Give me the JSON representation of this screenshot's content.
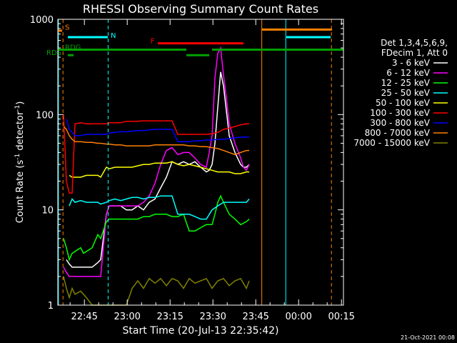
{
  "chart_data": {
    "type": "line",
    "title": "RHESSI Observing Summary Count Rates",
    "xlabel": "Start Time (20-Jul-13 22:35:42)",
    "ylabel_main": "Count Rate (s",
    "ylabel_sup": "-1",
    "ylabel_tail": " detector",
    "ylabel_sup2": "-1",
    "ylabel_close": ")",
    "x_unit": "minutes from 22:35:42",
    "xlim": [
      0,
      100
    ],
    "ylim": [
      1,
      1000
    ],
    "yscale": "log",
    "x_ticks": [
      {
        "x": 9.3,
        "label": "22:45"
      },
      {
        "x": 24.3,
        "label": "23:00"
      },
      {
        "x": 39.3,
        "label": "23:15"
      },
      {
        "x": 54.3,
        "label": "23:30"
      },
      {
        "x": 69.3,
        "label": "23:45"
      },
      {
        "x": 84.3,
        "label": "00:00"
      },
      {
        "x": 99.3,
        "label": "00:15"
      }
    ],
    "y_ticks": [
      {
        "y": 1,
        "label": "1"
      },
      {
        "y": 10,
        "label": "10"
      },
      {
        "y": 100,
        "label": "100"
      },
      {
        "y": 1000,
        "label": "1000"
      }
    ],
    "legend_header": [
      "Det 1,3,4,5,6,9,",
      "FDecim 1, Att 0"
    ],
    "legend_position": "right",
    "series": [
      {
        "name": "3 - 6 keV",
        "color": "#ffffff",
        "x": [
          3,
          4,
          5,
          8,
          9,
          12,
          14,
          15,
          17,
          18,
          20,
          22,
          24,
          26,
          28,
          30,
          32,
          34,
          36,
          38,
          40,
          42,
          44,
          46,
          48,
          50,
          52,
          53,
          54,
          55,
          56,
          57,
          58,
          59,
          60,
          62,
          64,
          65,
          66,
          67
        ],
        "y": [
          3,
          2.7,
          2.5,
          2.5,
          2.5,
          2.5,
          2.8,
          3,
          9,
          11,
          11,
          11,
          10,
          10,
          11,
          10,
          12,
          13,
          17,
          22,
          32,
          30,
          32,
          30,
          32,
          28,
          25,
          26,
          30,
          50,
          120,
          280,
          200,
          110,
          60,
          40,
          30,
          28,
          28,
          30
        ]
      },
      {
        "name": "6 - 12 keV",
        "color": "#ff00ff",
        "x": [
          2,
          3,
          4,
          5,
          8,
          9,
          12,
          14,
          15,
          17,
          18,
          20,
          22,
          24,
          26,
          28,
          30,
          32,
          34,
          36,
          38,
          40,
          42,
          44,
          46,
          48,
          50,
          52,
          53,
          54,
          55,
          56,
          57,
          58,
          59,
          60,
          62,
          64,
          65,
          66,
          67
        ],
        "y": [
          2.5,
          2.2,
          2,
          2,
          2,
          2,
          2,
          2,
          2,
          9,
          11,
          11,
          11,
          11,
          11,
          11,
          12,
          14,
          19,
          30,
          42,
          45,
          38,
          40,
          40,
          35,
          30,
          28,
          40,
          60,
          240,
          440,
          500,
          260,
          150,
          80,
          50,
          35,
          28,
          26,
          30
        ]
      },
      {
        "name": "12 - 25 keV",
        "color": "#00ff00",
        "x": [
          2,
          3,
          4,
          5,
          8,
          9,
          12,
          14,
          15,
          17,
          18,
          20,
          22,
          24,
          26,
          28,
          30,
          32,
          34,
          36,
          38,
          40,
          42,
          44,
          46,
          48,
          50,
          52,
          54,
          55,
          56,
          57,
          58,
          60,
          62,
          64,
          66,
          67
        ],
        "y": [
          5,
          4,
          3,
          3.5,
          4,
          3.5,
          4,
          5.5,
          5,
          7.5,
          8,
          8,
          8,
          8,
          8,
          8,
          8.5,
          8.5,
          9,
          9,
          9,
          8.5,
          8.5,
          9,
          6,
          6,
          6.5,
          7,
          7,
          9,
          12,
          14,
          12,
          9,
          8,
          7,
          7.5,
          8
        ]
      },
      {
        "name": "25 - 50 keV",
        "color": "#00ffff",
        "x": [
          4,
          5,
          6,
          8,
          10,
          12,
          14,
          15,
          17,
          18,
          20,
          22,
          24,
          26,
          28,
          30,
          32,
          34,
          36,
          38,
          40,
          42,
          44,
          46,
          48,
          50,
          52,
          54,
          56,
          58,
          60,
          62,
          64,
          66,
          67
        ],
        "y": [
          11,
          13,
          12,
          12.5,
          12,
          12,
          12,
          11.5,
          12,
          12.5,
          13,
          12.5,
          13,
          13.5,
          13.5,
          13,
          13.5,
          13.5,
          14,
          14,
          14,
          9,
          9,
          9,
          8.5,
          8,
          8,
          10,
          11,
          12,
          12,
          12,
          12,
          12,
          13
        ]
      },
      {
        "name": "50 - 100 keV",
        "color": "#ffff00",
        "x": [
          4,
          5,
          6,
          8,
          10,
          12,
          14,
          15,
          17,
          18,
          20,
          22,
          24,
          26,
          28,
          30,
          32,
          34,
          36,
          38,
          40,
          42,
          44,
          46,
          48,
          50,
          52,
          54,
          56,
          58,
          60,
          62,
          64,
          66,
          67
        ],
        "y": [
          23,
          22,
          22,
          22,
          23,
          23,
          23,
          22,
          28,
          27,
          28,
          28,
          28,
          28,
          29,
          30,
          30,
          31,
          31,
          31,
          32,
          30,
          29,
          30,
          29,
          28,
          27,
          26,
          25,
          25,
          25,
          24,
          24,
          25,
          25
        ]
      },
      {
        "name": "100 - 300 keV",
        "color": "#ff0000",
        "x": [
          2,
          3,
          4,
          5,
          6,
          8,
          10,
          12,
          14,
          15,
          17,
          18,
          20,
          22,
          24,
          26,
          28,
          30,
          32,
          34,
          36,
          38,
          40,
          42,
          44,
          46,
          48,
          50,
          52,
          54,
          56,
          58,
          60,
          62,
          64,
          66,
          67
        ],
        "y": [
          100,
          20,
          15,
          15,
          80,
          82,
          80,
          80,
          80,
          80,
          80,
          82,
          82,
          82,
          85,
          85,
          85,
          86,
          86,
          86,
          86,
          86,
          86,
          62,
          62,
          62,
          62,
          62,
          62,
          63,
          65,
          70,
          72,
          75,
          78,
          80,
          80
        ]
      },
      {
        "name": "300 - 800 keV",
        "color": "#0000ff",
        "x": [
          3,
          4,
          5,
          6,
          8,
          10,
          12,
          14,
          15,
          17,
          18,
          20,
          22,
          24,
          26,
          28,
          30,
          32,
          34,
          36,
          38,
          40,
          42,
          44,
          46,
          48,
          50,
          52,
          54,
          56,
          58,
          60,
          62,
          64,
          66,
          67
        ],
        "y": [
          90,
          70,
          65,
          60,
          60,
          62,
          62,
          62,
          62,
          62,
          64,
          65,
          66,
          66,
          67,
          68,
          68,
          69,
          70,
          70,
          70,
          70,
          52,
          52,
          52,
          53,
          53,
          54,
          54,
          55,
          55,
          56,
          57,
          58,
          58,
          58
        ]
      },
      {
        "name": "800 - 7000 keV",
        "color": "#ff8000",
        "x": [
          2,
          3,
          4,
          5,
          6,
          8,
          10,
          12,
          14,
          15,
          17,
          18,
          20,
          22,
          24,
          26,
          28,
          30,
          32,
          34,
          36,
          38,
          40,
          42,
          44,
          46,
          48,
          50,
          52,
          54,
          56,
          58,
          60,
          62,
          64,
          66,
          67
        ],
        "y": [
          75,
          70,
          60,
          55,
          52,
          52,
          51,
          51,
          50,
          50,
          49,
          49,
          48,
          48,
          47,
          47,
          47,
          47,
          47,
          48,
          48,
          48,
          48,
          48,
          48,
          47,
          47,
          46,
          46,
          45,
          44,
          42,
          40,
          38,
          40,
          42,
          42
        ]
      },
      {
        "name": "7000 - 15000 keV",
        "color": "#808000",
        "x": [
          2,
          3,
          4,
          5,
          6,
          8,
          10,
          12,
          14,
          15,
          17,
          18,
          20,
          22,
          24,
          26,
          28,
          30,
          32,
          34,
          36,
          38,
          40,
          42,
          44,
          46,
          48,
          50,
          52,
          54,
          56,
          58,
          60,
          62,
          64,
          66,
          67
        ],
        "y": [
          2,
          1.5,
          1.2,
          1.5,
          1.3,
          1.4,
          1.2,
          1,
          1,
          1,
          1,
          1,
          1,
          1,
          1,
          1.5,
          1.8,
          1.5,
          1.9,
          1.7,
          1.9,
          1.6,
          1.9,
          1.8,
          1.5,
          1.9,
          1.7,
          1.8,
          1.9,
          1.5,
          1.8,
          1.9,
          1.6,
          1.8,
          1.9,
          1.5,
          1.8
        ]
      }
    ],
    "flag_bars": [
      {
        "label": "S",
        "color": "#ff8000",
        "label_x": 2.5,
        "label_y": 780,
        "segments": [
          [
            0,
            1.5
          ]
        ],
        "y": 760
      },
      {
        "label": "N",
        "color": "#00ffff",
        "label_x": 18.5,
        "label_y": 640,
        "segments": [
          [
            3.5,
            17.5
          ]
        ],
        "y": 650
      },
      {
        "label": "F",
        "color": "#ff0000",
        "label_x": 32.5,
        "label_y": 560,
        "segments": [
          [
            35,
            65
          ]
        ],
        "y": 560
      },
      {
        "label": "RDG",
        "color": "#00a000",
        "label_x": 2.5,
        "label_y": 480,
        "segments": [
          [
            0,
            45
          ],
          [
            54,
            100
          ]
        ],
        "y": 480
      },
      {
        "label": "RDS",
        "color": "#00a000",
        "label_x": -4,
        "label_y": 420,
        "segments": [
          [
            3.5,
            5.5
          ],
          [
            45,
            53
          ]
        ],
        "y": 420
      }
    ],
    "top_bars": [
      {
        "color": "#ff8000",
        "segments": [
          [
            71.5,
            96
          ]
        ],
        "y": 780
      },
      {
        "color": "#00ffff",
        "segments": [
          [
            80,
            95.5
          ]
        ],
        "y": 650
      }
    ],
    "vlines": [
      {
        "x": 0.2,
        "color": "#00ffff",
        "style": "solid"
      },
      {
        "x": 1.8,
        "color": "#ff8000",
        "style": "dashed"
      },
      {
        "x": 17.6,
        "color": "#00ffff",
        "style": "dashed"
      },
      {
        "x": 71.4,
        "color": "#ff8000",
        "style": "solid"
      },
      {
        "x": 79.8,
        "color": "#00ffff",
        "style": "solid"
      },
      {
        "x": 95.8,
        "color": "#ff8000",
        "style": "dashed"
      }
    ],
    "footer": "21-Oct-2021 00:08"
  }
}
